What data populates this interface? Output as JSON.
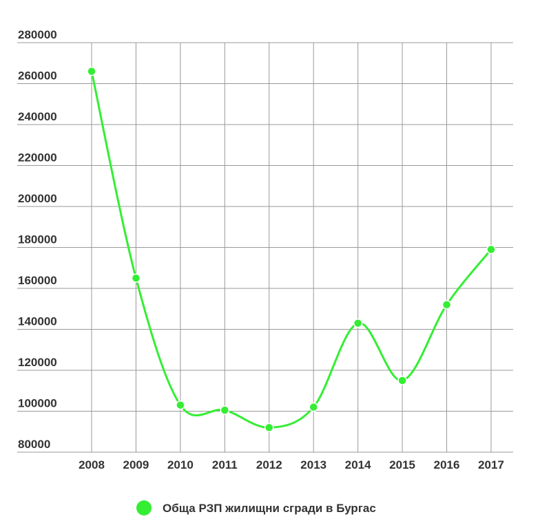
{
  "chart_data": {
    "type": "line",
    "categories": [
      "2008",
      "2009",
      "2010",
      "2011",
      "2012",
      "2013",
      "2014",
      "2015",
      "2016",
      "2017"
    ],
    "series": [
      {
        "name": "Обща РЗП жилищни сгради в Бургас",
        "color": "#33ee33",
        "values": [
          266000,
          165000,
          103000,
          100500,
          92000,
          102000,
          143000,
          115000,
          152000,
          179000
        ]
      }
    ],
    "ylim": [
      80000,
      280000
    ],
    "yticks": [
      80000,
      100000,
      120000,
      140000,
      160000,
      180000,
      200000,
      220000,
      240000,
      260000,
      280000
    ],
    "grid": true,
    "smooth": true,
    "legend": "bottom"
  }
}
